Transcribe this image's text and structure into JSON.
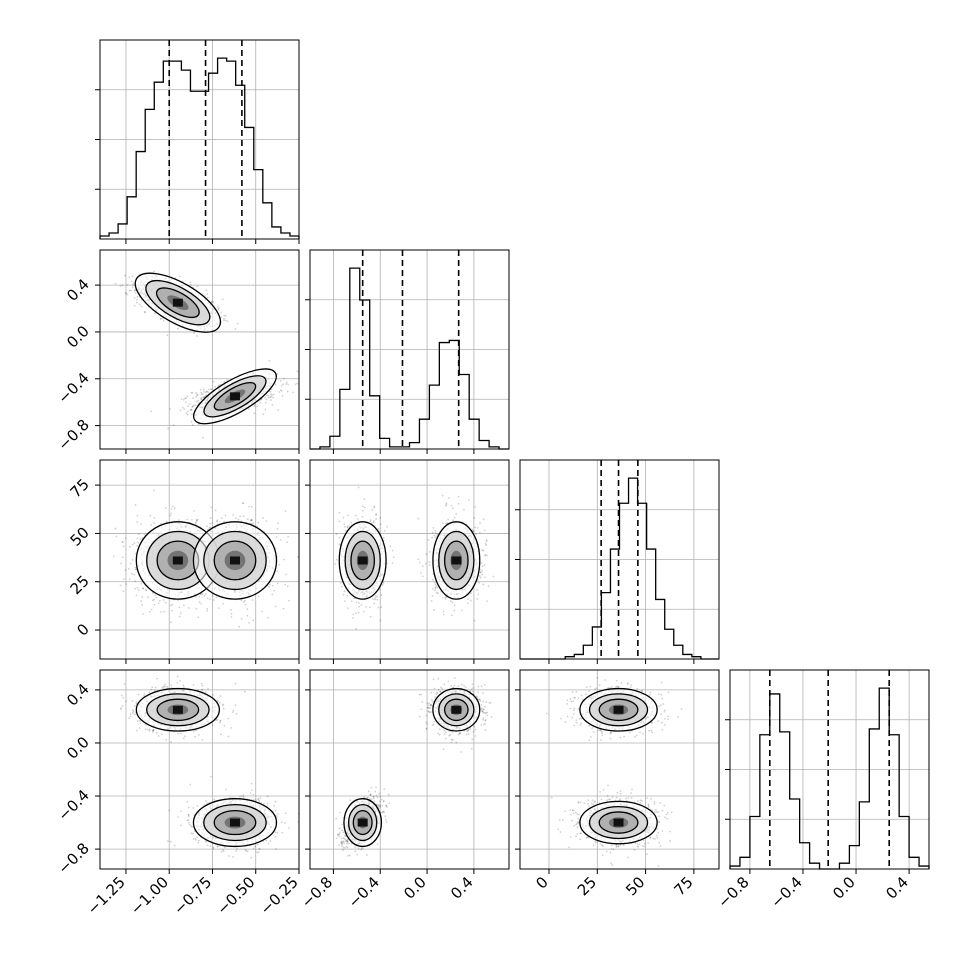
{
  "chart_data": {
    "type": "corner",
    "title": "",
    "grid": true,
    "params": [
      {
        "index": 0,
        "range": [
          -1.4,
          -0.25
        ],
        "ticks": [
          -1.25,
          -1.0,
          -0.75,
          -0.5,
          -0.25
        ],
        "tick_labels": [
          "−1.25",
          "−1.00",
          "−0.75",
          "−0.50",
          "−0.25"
        ],
        "quantiles": [
          -1.0,
          -0.79,
          -0.58
        ]
      },
      {
        "index": 1,
        "range": [
          -1.0,
          0.7
        ],
        "ticks": [
          -0.8,
          -0.4,
          0.0,
          0.4
        ],
        "tick_labels": [
          "−0.8",
          "−0.4",
          "0.0",
          "0.4"
        ],
        "quantiles": [
          -0.55,
          -0.21,
          0.27
        ]
      },
      {
        "index": 2,
        "range": [
          -15,
          88
        ],
        "ticks": [
          0,
          25,
          50,
          75
        ],
        "tick_labels": [
          "0",
          "25",
          "50",
          "75"
        ],
        "quantiles": [
          27,
          36,
          46
        ]
      },
      {
        "index": 3,
        "range": [
          -0.95,
          0.55
        ],
        "ticks": [
          -0.8,
          -0.4,
          0.0,
          0.4
        ],
        "tick_labels": [
          "−0.8",
          "−0.4",
          "0.0",
          "0.4"
        ],
        "quantiles": [
          -0.65,
          -0.21,
          0.25
        ]
      }
    ],
    "modes": [
      {
        "weight": 0.5,
        "mean": [
          -0.95,
          0.25,
          36,
          0.25
        ],
        "sd": [
          0.12,
          0.1,
          10,
          0.08
        ],
        "corr01": -0.6
      },
      {
        "weight": 0.5,
        "mean": [
          -0.62,
          -0.55,
          36,
          -0.6
        ],
        "sd": [
          0.12,
          0.08,
          10,
          0.09
        ],
        "corr01": 0.5
      }
    ],
    "mode_links": {
      "pair_1_0": "alternate",
      "pair_3_0": "alternate",
      "pair_3_1": "alternate",
      "pair_3_2": "independent",
      "pair_2_1": "independent",
      "pair_2_0": "independent"
    },
    "histograms": [
      {
        "param": 0,
        "bins_from": -1.4,
        "bins_to": -0.25,
        "counts": [
          1,
          2,
          5,
          14,
          29,
          43,
          52,
          59,
          59,
          56,
          49,
          49,
          55,
          60,
          59,
          51,
          37,
          23,
          12,
          4,
          2,
          1
        ]
      },
      {
        "param": 1,
        "bins_from": -1.0,
        "bins_to": 0.7,
        "counts": [
          0,
          1,
          6,
          28,
          85,
          70,
          25,
          5,
          1,
          1,
          3,
          14,
          30,
          50,
          51,
          35,
          14,
          4,
          1,
          0
        ]
      },
      {
        "param": 2,
        "bins_from": -15,
        "bins_to": 88,
        "counts": [
          0,
          0,
          0,
          0,
          0,
          1,
          2,
          6,
          14,
          29,
          48,
          68,
          79,
          68,
          48,
          26,
          13,
          6,
          2,
          1,
          0,
          0
        ]
      },
      {
        "param": 3,
        "bins_from": -0.95,
        "bins_to": 0.55,
        "counts": [
          1,
          4,
          18,
          46,
          60,
          47,
          24,
          9,
          2,
          0,
          0,
          2,
          8,
          23,
          48,
          62,
          46,
          18,
          4,
          1
        ]
      }
    ]
  }
}
